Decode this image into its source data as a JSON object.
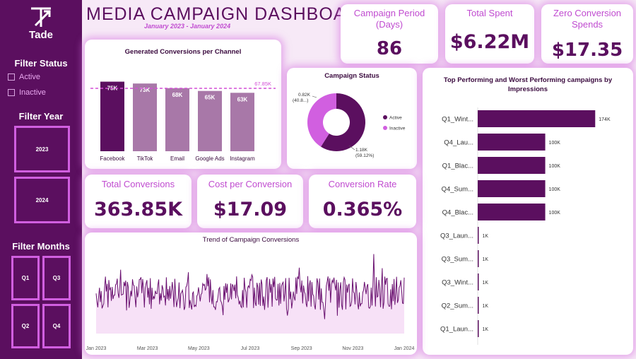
{
  "sidebar": {
    "logo_text": "Tade",
    "filter_status_title": "Filter Status",
    "status_options": [
      "Active",
      "Inactive"
    ],
    "filter_year_title": "Filter Year",
    "years": [
      "2023",
      "2024"
    ],
    "filter_months_title": "Filter Months",
    "quarters": [
      "Q1",
      "Q3",
      "Q2",
      "Q4"
    ]
  },
  "header": {
    "title": "MEDIA CAMPAIGN DASHBOARD",
    "subtitle": "January 2023 - January 2024"
  },
  "kpis": {
    "campaign_period": {
      "label": "Campaign Period (Days)",
      "value": "86"
    },
    "total_spent": {
      "label": "Total Spent",
      "value": "$6.22M"
    },
    "zero_conversion": {
      "label": "Zero Conversion Spends",
      "value": "$17.35"
    },
    "total_conversions": {
      "label": "Total Conversions",
      "value": "363.85K"
    },
    "cost_per_conversion": {
      "label": "Cost per Conversion",
      "value": "$17.09"
    },
    "conversion_rate": {
      "label": "Conversion Rate",
      "value": "0.365%"
    }
  },
  "colors": {
    "dark_purple": "#5b0f5f",
    "light_purple": "#a878a8",
    "magenta": "#d15fe0",
    "pink_line": "#d34fd6"
  },
  "chart_data": [
    {
      "type": "bar",
      "title": "Generated Conversions per Channel",
      "categories": [
        "Facebook",
        "TikTok",
        "Email",
        "Google Ads",
        "Instagram"
      ],
      "values": [
        75,
        73,
        68,
        65,
        63
      ],
      "value_labels": [
        "75K",
        "73K",
        "68K",
        "65K",
        "63K"
      ],
      "reference_line": {
        "value": 67.85,
        "label": "67.85K"
      },
      "ylim": [
        0,
        80
      ]
    },
    {
      "type": "pie",
      "title": "Campaign Status",
      "labels": [
        "Active",
        "Inactive"
      ],
      "values": [
        1.18,
        0.82
      ],
      "annotations": [
        "1.18K (59.12%)",
        "0.82K (40.8...)"
      ],
      "annotation_lines": [
        [
          "1.18K",
          "(59.12%)"
        ],
        [
          "0.82K",
          "(40.8...)"
        ]
      ]
    },
    {
      "type": "bar",
      "orientation": "horizontal",
      "title": "Top Performing and Worst Performing campaigns by Impressions",
      "categories": [
        "Q1_Wint...",
        "Q4_Lau...",
        "Q1_Blac...",
        "Q4_Sum...",
        "Q4_Blac...",
        "Q3_Laun...",
        "Q3_Sum...",
        "Q3_Wint...",
        "Q2_Sum...",
        "Q1_Laun..."
      ],
      "values": [
        174,
        100,
        100,
        100,
        100,
        1,
        1,
        1,
        1,
        1
      ],
      "value_labels": [
        "174K",
        "100K",
        "100K",
        "100K",
        "100K",
        "1K",
        "1K",
        "1K",
        "1K",
        "1K"
      ],
      "xlim": [
        0,
        180
      ]
    },
    {
      "type": "line",
      "title": "Trend of Campaign Conversions",
      "x_tick_labels": [
        "Jan 2023",
        "Mar 2023",
        "May 2023",
        "Jul 2023",
        "Sep 2023",
        "Nov 2023",
        "Jan 2024"
      ],
      "n_points": 365,
      "seed": 7,
      "ylim": [
        0,
        12
      ]
    }
  ]
}
